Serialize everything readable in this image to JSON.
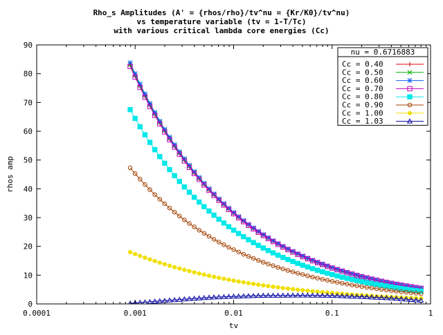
{
  "chart_data": {
    "type": "line",
    "title": [
      "Rho_s Amplitudes (A' = {rhos/rho}/tv^nu = {Kr/K0}/tv^nu)",
      "vs temperature variable (tv = 1-T/Tc)",
      "with various critical lambda core energies (Cc)"
    ],
    "xlabel": "tv",
    "ylabel": "rhos amp",
    "xscale": "log",
    "xlim": [
      0.0001,
      1
    ],
    "ylim": [
      0,
      90
    ],
    "x_tick_labels": [
      "0.0001",
      "0.001",
      "0.01",
      "0.1",
      "1"
    ],
    "y_tick_labels": [
      "0",
      "10",
      "20",
      "30",
      "40",
      "50",
      "60",
      "70",
      "80",
      "90"
    ],
    "grid": false,
    "legend_position": "top-right",
    "legend_title": "nu = 0.6716883",
    "series": [
      {
        "name": "Cc = 0.40",
        "color": "#e00000",
        "marker": "plus",
        "amp": 83.0,
        "slope": -0.4,
        "x_min": 0.00089,
        "x_max": 0.8
      },
      {
        "name": "Cc = 0.50",
        "color": "#00b000",
        "marker": "cross",
        "amp": 83.2,
        "slope": -0.4,
        "x_min": 0.00089,
        "x_max": 0.8
      },
      {
        "name": "Cc = 0.60",
        "color": "#1060f0",
        "marker": "star",
        "amp": 83.8,
        "slope": -0.4,
        "x_min": 0.00089,
        "x_max": 0.8
      },
      {
        "name": "Cc = 0.70",
        "color": "#c000c0",
        "marker": "square-open",
        "amp": 82.5,
        "slope": -0.4,
        "x_min": 0.00089,
        "x_max": 0.8
      },
      {
        "name": "Cc = 0.80",
        "color": "#00e8e8",
        "marker": "square-filled",
        "amp": 67.5,
        "slope": -0.4,
        "x_min": 0.00089,
        "x_max": 0.8
      },
      {
        "name": "Cc = 0.90",
        "color": "#a04000",
        "marker": "circle-open",
        "amp": 47.3,
        "slope": -0.38,
        "x_min": 0.00089,
        "x_max": 0.8
      },
      {
        "name": "Cc = 1.00",
        "color": "#f0e000",
        "marker": "circle-filled",
        "amp": 18.0,
        "slope": -0.33,
        "x_min": 0.00089,
        "x_max": 0.8
      },
      {
        "name": "Cc = 1.03",
        "color": "#0000a0",
        "marker": "triangle-open",
        "points": [
          [
            0.00089,
            0.2
          ],
          [
            0.0015,
            0.8
          ],
          [
            0.003,
            1.6
          ],
          [
            0.006,
            2.3
          ],
          [
            0.01,
            2.6
          ],
          [
            0.02,
            2.9
          ],
          [
            0.05,
            3.0
          ],
          [
            0.1,
            2.9
          ],
          [
            0.2,
            2.5
          ],
          [
            0.4,
            2.0
          ],
          [
            0.8,
            1.2
          ]
        ]
      }
    ]
  }
}
